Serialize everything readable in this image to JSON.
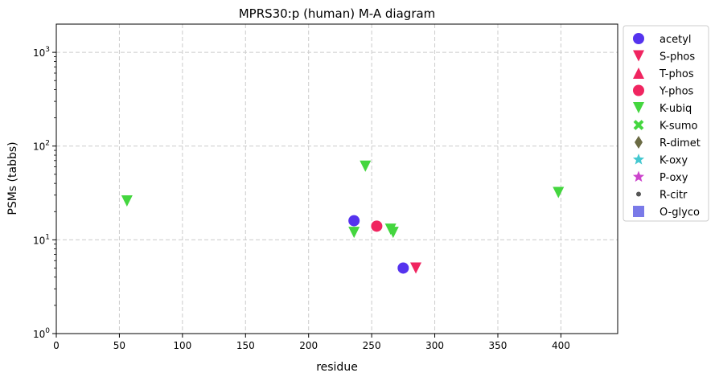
{
  "chart_data": {
    "type": "scatter",
    "title": "MPRS30:p (human) M-A diagram",
    "xlabel": "residue",
    "ylabel": "PSMs (tabbs)",
    "xlim": [
      0,
      445
    ],
    "ylim": [
      1,
      2000
    ],
    "yscale": "log",
    "grid": true,
    "legend_position": "outside-right",
    "x_ticks": [
      0,
      50,
      100,
      150,
      200,
      250,
      300,
      350,
      400
    ],
    "y_ticks": [
      {
        "value": 1,
        "base": "10",
        "exp": "0"
      },
      {
        "value": 10,
        "base": "10",
        "exp": "1"
      },
      {
        "value": 100,
        "base": "10",
        "exp": "2"
      },
      {
        "value": 1000,
        "base": "10",
        "exp": "3"
      }
    ],
    "series": [
      {
        "name": "acetyl",
        "marker": "circle",
        "color": "#5533ee",
        "points": [
          {
            "x": 236,
            "y": 16
          },
          {
            "x": 275,
            "y": 5
          }
        ]
      },
      {
        "name": "S-phos",
        "marker": "triangle-down",
        "color": "#f02560",
        "points": [
          {
            "x": 285,
            "y": 5
          }
        ]
      },
      {
        "name": "T-phos",
        "marker": "triangle-up",
        "color": "#f02560",
        "points": []
      },
      {
        "name": "Y-phos",
        "marker": "circle",
        "color": "#f02560",
        "points": [
          {
            "x": 254,
            "y": 14
          }
        ]
      },
      {
        "name": "K-ubiq",
        "marker": "triangle-down",
        "color": "#44d63f",
        "points": [
          {
            "x": 56,
            "y": 26
          },
          {
            "x": 236,
            "y": 12
          },
          {
            "x": 245,
            "y": 61
          },
          {
            "x": 265,
            "y": 13
          },
          {
            "x": 267,
            "y": 12
          },
          {
            "x": 398,
            "y": 32
          }
        ]
      },
      {
        "name": "K-sumo",
        "marker": "x-cross",
        "color": "#44d63f",
        "points": []
      },
      {
        "name": "R-dimet",
        "marker": "diamond",
        "color": "#6b6b44",
        "points": []
      },
      {
        "name": "K-oxy",
        "marker": "star",
        "color": "#44c8d0",
        "points": []
      },
      {
        "name": "P-oxy",
        "marker": "star",
        "color": "#cc44cc",
        "points": []
      },
      {
        "name": "R-citr",
        "marker": "small-circle",
        "color": "#555555",
        "points": []
      },
      {
        "name": "O-glyco",
        "marker": "square",
        "color": "#6b6be6",
        "points": []
      }
    ]
  }
}
